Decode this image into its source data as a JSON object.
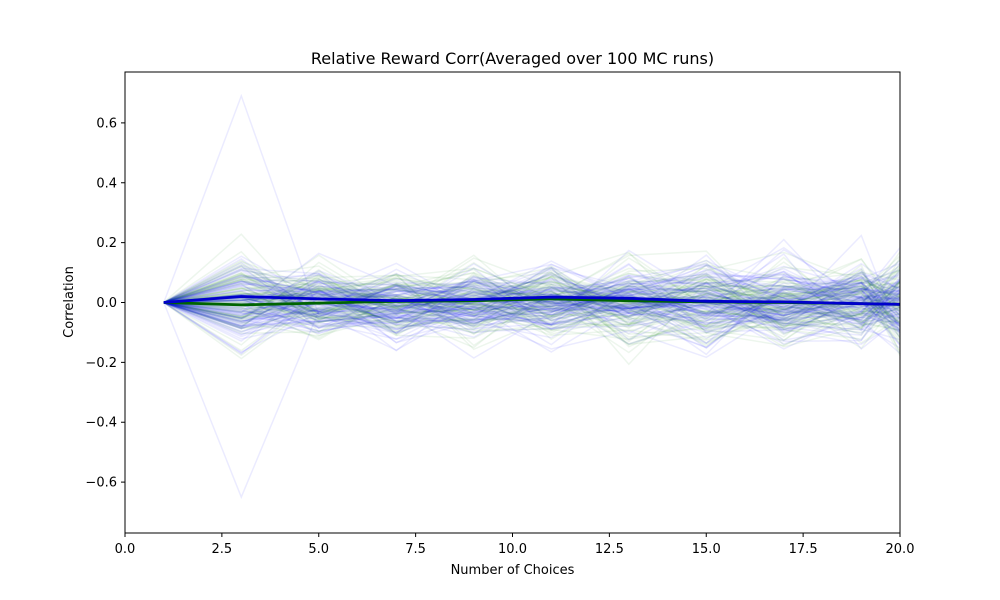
{
  "chart_data": {
    "type": "line",
    "title": "Relative Reward Corr(Averaged over 100 MC runs)",
    "xlabel": "Number of Choices",
    "ylabel": "Correlation",
    "xlim": [
      0.0,
      20.0
    ],
    "ylim": [
      -0.77,
      0.77
    ],
    "xticks": [
      "0.0",
      "2.5",
      "5.0",
      "7.5",
      "10.0",
      "12.5",
      "15.0",
      "17.5",
      "20.0"
    ],
    "xtick_values": [
      0,
      2.5,
      5,
      7.5,
      10,
      12.5,
      15,
      17.5,
      20
    ],
    "yticks": [
      "−0.6",
      "−0.4",
      "−0.2",
      "0.0",
      "0.2",
      "0.4",
      "0.6"
    ],
    "ytick_values": [
      -0.6,
      -0.4,
      -0.2,
      0.0,
      0.2,
      0.4,
      0.6
    ],
    "grid": false,
    "x": [
      1,
      3,
      5,
      7,
      9,
      11,
      13,
      15,
      17,
      19,
      20
    ],
    "mean_series": [
      {
        "color": "#006400",
        "values": [
          0.0,
          -0.008,
          -0.002,
          0.004,
          0.006,
          0.012,
          0.006,
          0.002,
          0.0,
          -0.004,
          -0.006
        ]
      },
      {
        "color": "#0000cc",
        "values": [
          0.0,
          0.02,
          0.012,
          0.006,
          0.01,
          0.018,
          0.014,
          0.004,
          0.002,
          -0.004,
          -0.006
        ]
      }
    ],
    "runs": {
      "blue_color": "#0000ff",
      "green_color": "#008000",
      "blue_count": 100,
      "green_count": 100,
      "blue_first_step_extremes": [
        0.69,
        -0.65
      ],
      "typical_spread": 0.25
    }
  }
}
